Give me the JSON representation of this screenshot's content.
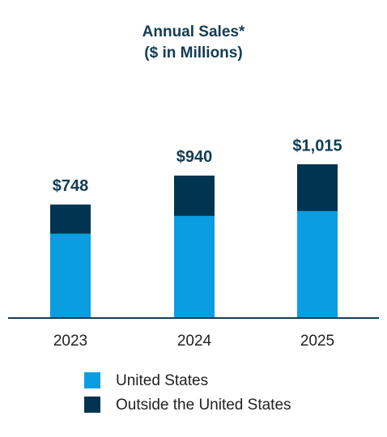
{
  "chart_data": {
    "type": "stacked-bar",
    "title": "Annual Sales*",
    "subtitle": "($ in Millions)",
    "categories": [
      "2023",
      "2024",
      "2025"
    ],
    "series": [
      {
        "name": "United States",
        "color": "#0a9de2",
        "values": [
          554,
          672,
          704
        ]
      },
      {
        "name": "Outside the United States",
        "color": "#003450",
        "values": [
          194,
          268,
          311
        ]
      }
    ],
    "totals": {
      "values": [
        748,
        940,
        1015
      ],
      "value_labels": [
        "$748",
        "$940",
        "$1,015"
      ]
    }
  }
}
